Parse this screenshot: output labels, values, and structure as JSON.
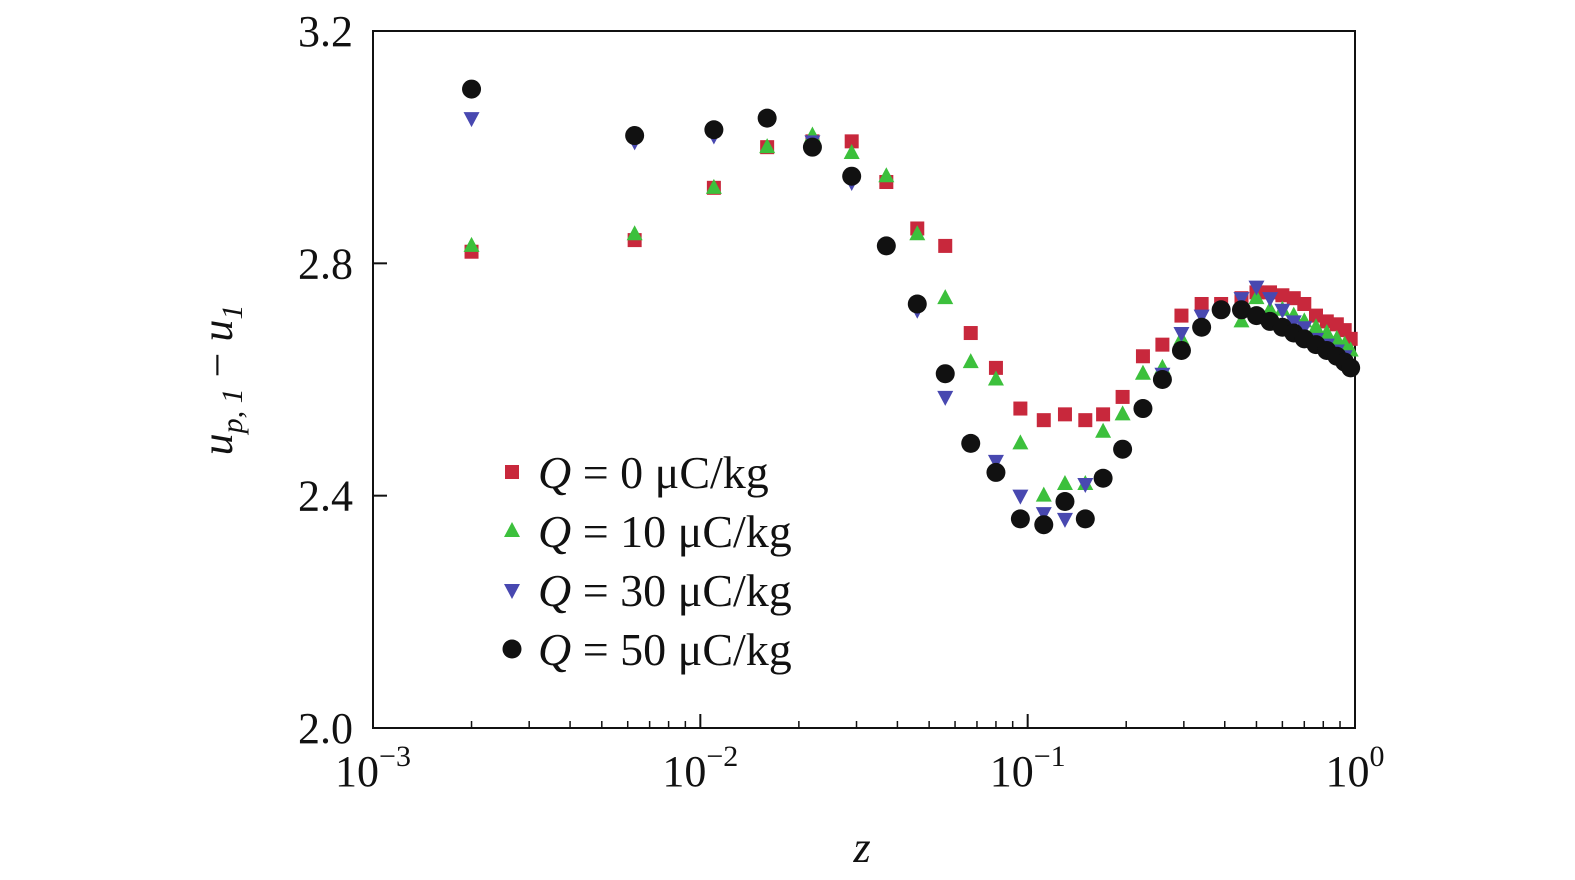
{
  "chart_data": {
    "type": "scatter",
    "title": "",
    "xlabel": "z",
    "ylabel": "u_p,1 − u_1",
    "x_scale": "log",
    "xlim": [
      0.001,
      1
    ],
    "ylim": [
      2.0,
      3.2
    ],
    "x_ticks": [
      {
        "value": 0.001,
        "base": "10",
        "exp": "−3"
      },
      {
        "value": 0.01,
        "base": "10",
        "exp": "−2"
      },
      {
        "value": 0.1,
        "base": "10",
        "exp": "−1"
      },
      {
        "value": 1,
        "base": "10",
        "exp": "0"
      }
    ],
    "y_ticks": [
      "2.0",
      "2.4",
      "2.8",
      "3.2"
    ],
    "grid": false,
    "legend_position": "lower-left",
    "series": [
      {
        "name": "Q = 0 μC/kg",
        "q_symbol": "Q",
        "q_rest": " = 0 μC/kg",
        "marker": "square",
        "color": "#c8283c",
        "points": [
          [
            0.002,
            2.82
          ],
          [
            0.0063,
            2.84
          ],
          [
            0.011,
            2.93
          ],
          [
            0.016,
            3.0
          ],
          [
            0.022,
            3.01
          ],
          [
            0.029,
            3.01
          ],
          [
            0.037,
            2.94
          ],
          [
            0.046,
            2.86
          ],
          [
            0.056,
            2.83
          ],
          [
            0.067,
            2.68
          ],
          [
            0.08,
            2.62
          ],
          [
            0.095,
            2.55
          ],
          [
            0.112,
            2.53
          ],
          [
            0.13,
            2.54
          ],
          [
            0.15,
            2.53
          ],
          [
            0.17,
            2.54
          ],
          [
            0.195,
            2.57
          ],
          [
            0.225,
            2.64
          ],
          [
            0.258,
            2.66
          ],
          [
            0.295,
            2.71
          ],
          [
            0.34,
            2.73
          ],
          [
            0.39,
            2.73
          ],
          [
            0.45,
            2.74
          ],
          [
            0.5,
            2.75
          ],
          [
            0.55,
            2.75
          ],
          [
            0.6,
            2.745
          ],
          [
            0.65,
            2.74
          ],
          [
            0.7,
            2.73
          ],
          [
            0.76,
            2.71
          ],
          [
            0.82,
            2.7
          ],
          [
            0.88,
            2.695
          ],
          [
            0.93,
            2.685
          ],
          [
            0.97,
            2.67
          ]
        ]
      },
      {
        "name": "Q = 10 μC/kg",
        "q_symbol": "Q",
        "q_rest": " = 10 μC/kg",
        "marker": "triangle-up",
        "color": "#3cc03c",
        "points": [
          [
            0.002,
            2.83
          ],
          [
            0.0063,
            2.85
          ],
          [
            0.011,
            2.93
          ],
          [
            0.016,
            3.0
          ],
          [
            0.022,
            3.02
          ],
          [
            0.029,
            2.99
          ],
          [
            0.037,
            2.95
          ],
          [
            0.046,
            2.85
          ],
          [
            0.056,
            2.74
          ],
          [
            0.067,
            2.63
          ],
          [
            0.08,
            2.6
          ],
          [
            0.095,
            2.49
          ],
          [
            0.112,
            2.4
          ],
          [
            0.13,
            2.42
          ],
          [
            0.15,
            2.42
          ],
          [
            0.17,
            2.51
          ],
          [
            0.195,
            2.54
          ],
          [
            0.225,
            2.61
          ],
          [
            0.258,
            2.62
          ],
          [
            0.295,
            2.67
          ],
          [
            0.34,
            2.7
          ],
          [
            0.39,
            2.72
          ],
          [
            0.45,
            2.7
          ],
          [
            0.5,
            2.74
          ],
          [
            0.55,
            2.72
          ],
          [
            0.6,
            2.72
          ],
          [
            0.65,
            2.71
          ],
          [
            0.7,
            2.7
          ],
          [
            0.76,
            2.69
          ],
          [
            0.82,
            2.68
          ],
          [
            0.88,
            2.67
          ],
          [
            0.93,
            2.66
          ],
          [
            0.97,
            2.65
          ]
        ]
      },
      {
        "name": "Q = 30 μC/kg",
        "q_symbol": "Q",
        "q_rest": " = 30 μC/kg",
        "marker": "triangle-down",
        "color": "#4848b0",
        "points": [
          [
            0.002,
            3.05
          ],
          [
            0.0063,
            3.01
          ],
          [
            0.011,
            3.02
          ],
          [
            0.016,
            3.05
          ],
          [
            0.022,
            3.01
          ],
          [
            0.029,
            2.94
          ],
          [
            0.037,
            2.83
          ],
          [
            0.046,
            2.72
          ],
          [
            0.056,
            2.57
          ],
          [
            0.067,
            2.49
          ],
          [
            0.08,
            2.46
          ],
          [
            0.095,
            2.4
          ],
          [
            0.112,
            2.37
          ],
          [
            0.13,
            2.36
          ],
          [
            0.15,
            2.42
          ],
          [
            0.17,
            2.43
          ],
          [
            0.195,
            2.48
          ],
          [
            0.225,
            2.55
          ],
          [
            0.258,
            2.61
          ],
          [
            0.295,
            2.68
          ],
          [
            0.34,
            2.71
          ],
          [
            0.39,
            2.72
          ],
          [
            0.45,
            2.74
          ],
          [
            0.5,
            2.76
          ],
          [
            0.55,
            2.74
          ],
          [
            0.6,
            2.72
          ],
          [
            0.65,
            2.7
          ],
          [
            0.7,
            2.69
          ],
          [
            0.76,
            2.67
          ],
          [
            0.82,
            2.66
          ],
          [
            0.88,
            2.65
          ],
          [
            0.93,
            2.64
          ],
          [
            0.97,
            2.62
          ]
        ]
      },
      {
        "name": "Q = 50 μC/kg",
        "q_symbol": "Q",
        "q_rest": " = 50 μC/kg",
        "marker": "circle",
        "color": "#111111",
        "points": [
          [
            0.002,
            3.1
          ],
          [
            0.0063,
            3.02
          ],
          [
            0.011,
            3.03
          ],
          [
            0.016,
            3.05
          ],
          [
            0.022,
            3.0
          ],
          [
            0.029,
            2.95
          ],
          [
            0.037,
            2.83
          ],
          [
            0.046,
            2.73
          ],
          [
            0.056,
            2.61
          ],
          [
            0.067,
            2.49
          ],
          [
            0.08,
            2.44
          ],
          [
            0.095,
            2.36
          ],
          [
            0.112,
            2.35
          ],
          [
            0.13,
            2.39
          ],
          [
            0.15,
            2.36
          ],
          [
            0.17,
            2.43
          ],
          [
            0.195,
            2.48
          ],
          [
            0.225,
            2.55
          ],
          [
            0.258,
            2.6
          ],
          [
            0.295,
            2.65
          ],
          [
            0.34,
            2.69
          ],
          [
            0.39,
            2.72
          ],
          [
            0.45,
            2.72
          ],
          [
            0.5,
            2.71
          ],
          [
            0.55,
            2.7
          ],
          [
            0.6,
            2.69
          ],
          [
            0.65,
            2.68
          ],
          [
            0.7,
            2.67
          ],
          [
            0.76,
            2.66
          ],
          [
            0.82,
            2.65
          ],
          [
            0.88,
            2.64
          ],
          [
            0.93,
            2.63
          ],
          [
            0.97,
            2.62
          ]
        ]
      }
    ]
  }
}
